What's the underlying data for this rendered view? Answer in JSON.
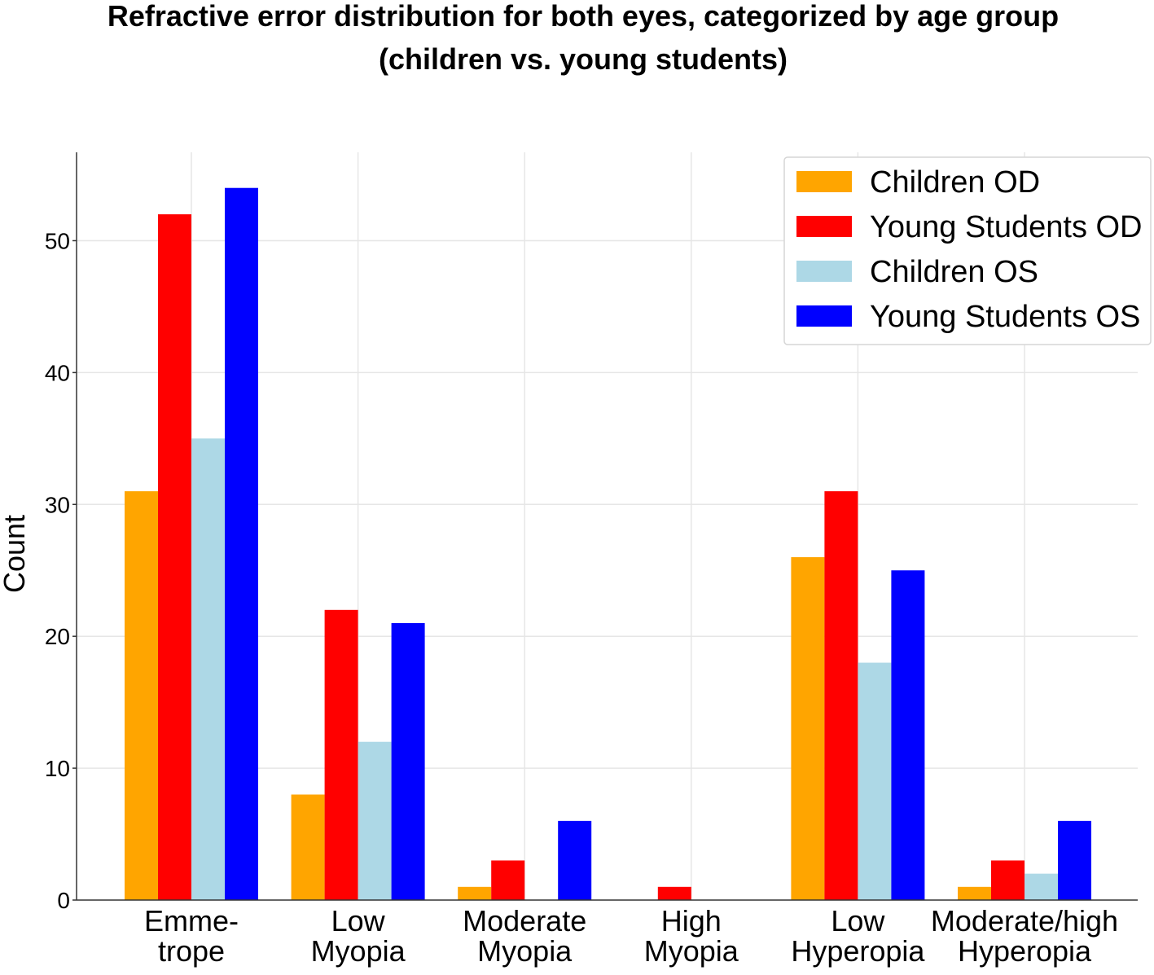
{
  "chart_data": {
    "type": "bar",
    "title_lines": [
      "Refractive error distribution for both eyes, categorized by age group",
      "(children vs. young students)"
    ],
    "xlabel": "",
    "ylabel": "Count",
    "ylim": [
      0,
      56.7
    ],
    "yticks": [
      0,
      10,
      20,
      30,
      40,
      50
    ],
    "grid": true,
    "legend_position": "top-right",
    "categories": [
      [
        "Emme-",
        "trope"
      ],
      [
        "Low",
        "Myopia"
      ],
      [
        "Moderate",
        "Myopia"
      ],
      [
        "High",
        "Myopia"
      ],
      [
        "Low",
        "Hyperopia"
      ],
      [
        "Moderate/high",
        "Hyperopia"
      ]
    ],
    "series": [
      {
        "name": "Children OD",
        "color": "#FFA500",
        "values": [
          31,
          8,
          1,
          0,
          26,
          1
        ]
      },
      {
        "name": "Young Students OD",
        "color": "#FF0000",
        "values": [
          52,
          22,
          3,
          1,
          31,
          3
        ]
      },
      {
        "name": "Children OS",
        "color": "#ADD8E6",
        "values": [
          35,
          12,
          0,
          0,
          18,
          2
        ]
      },
      {
        "name": "Young Students OS",
        "color": "#0000FF",
        "values": [
          54,
          21,
          6,
          0,
          25,
          6
        ]
      }
    ]
  }
}
